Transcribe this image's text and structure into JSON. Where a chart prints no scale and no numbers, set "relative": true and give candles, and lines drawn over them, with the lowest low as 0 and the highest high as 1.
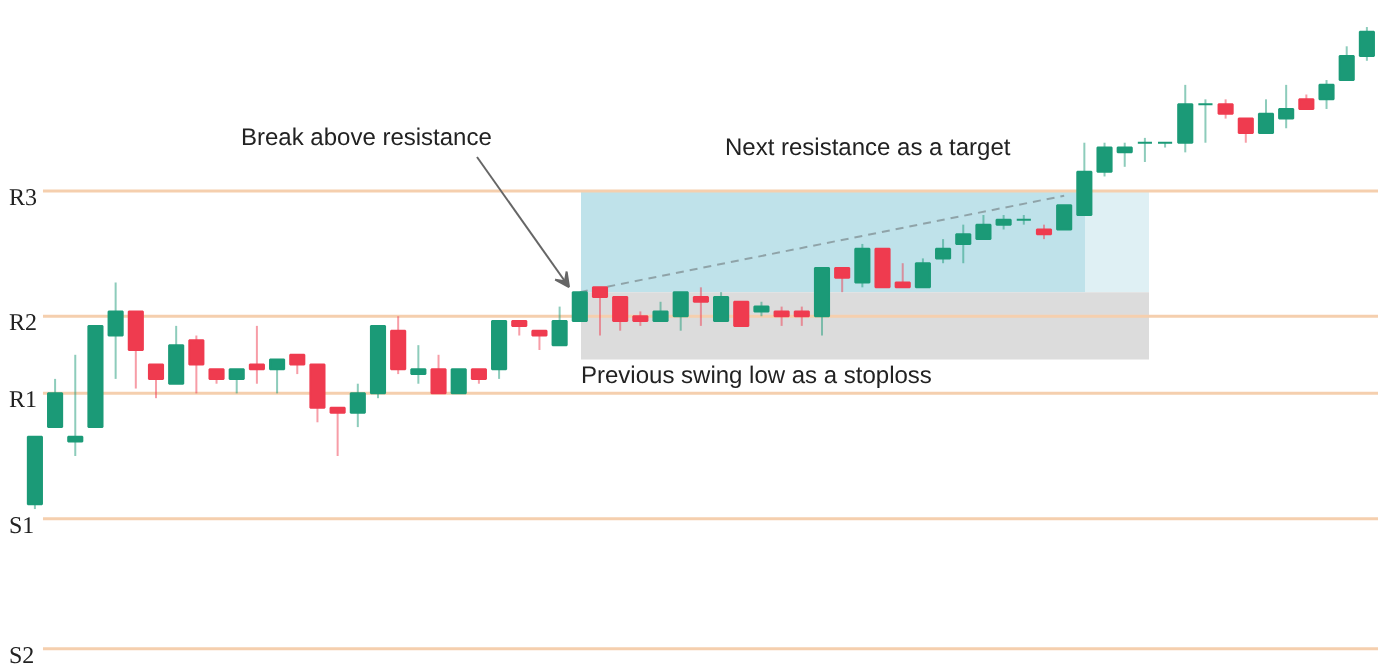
{
  "chart_data": {
    "type": "candlestick",
    "relative": true,
    "categories": [
      null,
      null,
      null,
      null,
      null,
      null,
      null,
      null,
      null,
      null,
      null,
      null,
      null,
      null,
      null,
      null,
      null,
      null,
      null,
      null,
      null,
      null,
      null,
      null,
      null,
      null,
      null,
      null,
      null,
      null,
      null,
      null,
      null,
      null,
      null,
      null,
      null,
      null,
      null,
      null,
      null,
      null,
      null,
      null,
      null,
      null,
      null,
      null,
      null,
      null,
      null,
      null,
      null,
      null,
      null,
      null,
      null,
      null,
      null,
      null,
      null,
      null,
      null,
      null,
      null,
      null,
      null
    ],
    "ohlc": [
      [
        0.01,
        0.15,
        0,
        0.15
      ],
      [
        0.17,
        0.27,
        0.17,
        0.24
      ],
      [
        0.14,
        0.32,
        0.11,
        0.15
      ],
      [
        0.17,
        0.38,
        0.17,
        0.38
      ],
      [
        0.36,
        0.47,
        0.27,
        0.41
      ],
      [
        0.41,
        0.41,
        0.25,
        0.33
      ],
      [
        0.3,
        0.3,
        0.23,
        0.27
      ],
      [
        0.26,
        0.38,
        0.26,
        0.34
      ],
      [
        0.35,
        0.36,
        0.24,
        0.3
      ],
      [
        0.29,
        0.29,
        0.26,
        0.27
      ],
      [
        0.27,
        0.29,
        0.24,
        0.29
      ],
      [
        0.3,
        0.38,
        0.26,
        0.29
      ],
      [
        0.29,
        0.31,
        0.24,
        0.31
      ],
      [
        0.32,
        0.32,
        0.28,
        0.3
      ],
      [
        0.3,
        0.3,
        0.18,
        0.21
      ],
      [
        0.21,
        0.21,
        0.11,
        0.2
      ],
      [
        0.2,
        0.26,
        0.17,
        0.24
      ],
      [
        0.24,
        0.38,
        0.23,
        0.38
      ],
      [
        0.37,
        0.4,
        0.28,
        0.29
      ],
      [
        0.28,
        0.34,
        0.26,
        0.29
      ],
      [
        0.29,
        0.32,
        0.24,
        0.24
      ],
      [
        0.24,
        0.29,
        0.24,
        0.29
      ],
      [
        0.29,
        0.29,
        0.26,
        0.27
      ],
      [
        0.29,
        0.39,
        0.27,
        0.39
      ],
      [
        0.39,
        0.39,
        0.36,
        0.38
      ],
      [
        0.37,
        0.37,
        0.33,
        0.36
      ],
      [
        0.34,
        0.42,
        0.34,
        0.39
      ],
      [
        0.39,
        0.45,
        0.39,
        0.45
      ],
      [
        0.46,
        0.46,
        0.36,
        0.44
      ],
      [
        0.44,
        0.44,
        0.37,
        0.39
      ],
      [
        0.4,
        0.41,
        0.38,
        0.39
      ],
      [
        0.39,
        0.43,
        0.39,
        0.41
      ],
      [
        0.4,
        0.45,
        0.37,
        0.45
      ],
      [
        0.44,
        0.46,
        0.38,
        0.43
      ],
      [
        0.39,
        0.45,
        0.39,
        0.44
      ],
      [
        0.43,
        0.43,
        0.38,
        0.38
      ],
      [
        0.41,
        0.43,
        0.4,
        0.42
      ],
      [
        0.41,
        0.42,
        0.38,
        0.4
      ],
      [
        0.41,
        0.42,
        0.38,
        0.4
      ],
      [
        0.4,
        0.5,
        0.36,
        0.5
      ],
      [
        0.5,
        0.5,
        0.45,
        0.48
      ],
      [
        0.47,
        0.55,
        0.46,
        0.54
      ],
      [
        0.54,
        0.54,
        0.46,
        0.46
      ],
      [
        0.47,
        0.51,
        0.46,
        0.46
      ],
      [
        0.46,
        0.52,
        0.46,
        0.51
      ],
      [
        0.52,
        0.56,
        0.51,
        0.54
      ],
      [
        0.55,
        0.59,
        0.51,
        0.57
      ],
      [
        0.56,
        0.61,
        0.56,
        0.59
      ],
      [
        0.59,
        0.61,
        0.58,
        0.6
      ],
      [
        0.6,
        0.61,
        0.59,
        0.6
      ],
      [
        0.58,
        0.59,
        0.56,
        0.57
      ],
      [
        0.58,
        0.63,
        0.58,
        0.63
      ],
      [
        0.61,
        0.76,
        0.61,
        0.7
      ],
      [
        0.7,
        0.76,
        0.69,
        0.75
      ],
      [
        0.74,
        0.76,
        0.71,
        0.75
      ],
      [
        0.76,
        0.77,
        0.72,
        0.76
      ],
      [
        0.76,
        0.76,
        0.75,
        0.76
      ],
      [
        0.76,
        0.88,
        0.74,
        0.84
      ],
      [
        0.84,
        0.85,
        0.76,
        0.84
      ],
      [
        0.84,
        0.85,
        0.81,
        0.82
      ],
      [
        0.81,
        0.81,
        0.76,
        0.78
      ],
      [
        0.78,
        0.85,
        0.78,
        0.82
      ],
      [
        0.81,
        0.88,
        0.79,
        0.83
      ],
      [
        0.85,
        0.86,
        0.83,
        0.83
      ],
      [
        0.85,
        0.89,
        0.83,
        0.88
      ],
      [
        0.89,
        0.96,
        0.89,
        0.94
      ],
      [
        0.94,
        1,
        0.93,
        0.99
      ]
    ],
    "colors": [
      "#1b9a77",
      "#1b9a77",
      "#1b9a77",
      "#1b9a77",
      "#1b9a77",
      "#ef3b4f",
      "#ef3b4f",
      "#1b9a77",
      "#ef3b4f",
      "#ef3b4f",
      "#1b9a77",
      "#ef3b4f",
      "#1b9a77",
      "#ef3b4f",
      "#ef3b4f",
      "#ef3b4f",
      "#1b9a77",
      "#1b9a77",
      "#ef3b4f",
      "#1b9a77",
      "#ef3b4f",
      "#1b9a77",
      "#ef3b4f",
      "#1b9a77",
      "#ef3b4f",
      "#ef3b4f",
      "#1b9a77",
      "#1b9a77",
      "#ef3b4f",
      "#ef3b4f",
      "#ef3b4f",
      "#1b9a77",
      "#1b9a77",
      "#ef3b4f",
      "#1b9a77",
      "#ef3b4f",
      "#1b9a77",
      "#ef3b4f",
      "#ef3b4f",
      "#1b9a77",
      "#ef3b4f",
      "#1b9a77",
      "#ef3b4f",
      "#ef3b4f",
      "#1b9a77",
      "#1b9a77",
      "#1b9a77",
      "#1b9a77",
      "#1b9a77",
      "#1b9a77",
      "#ef3b4f",
      "#1b9a77",
      "#1b9a77",
      "#1b9a77",
      "#1b9a77",
      "#1b9a77",
      "#1b9a77",
      "#1b9a77",
      "#1b9a77",
      "#ef3b4f",
      "#ef3b4f",
      "#1b9a77",
      "#1b9a77",
      "#ef3b4f",
      "#1b9a77",
      "#1b9a77",
      "#1b9a77"
    ],
    "series": [
      {
        "type": "line",
        "values": [
          null,
          null,
          null,
          null,
          null,
          null,
          null,
          null,
          null,
          null,
          null,
          null,
          null,
          null,
          null,
          null,
          null,
          null,
          null,
          null,
          null,
          null,
          null,
          null,
          null,
          null,
          null,
          0.45,
          null,
          null,
          null,
          null,
          null,
          null,
          null,
          null,
          null,
          null,
          null,
          null,
          null,
          null,
          null,
          null,
          null,
          null,
          null,
          null,
          null,
          null,
          null,
          0.65,
          null,
          null,
          null,
          null,
          null,
          null,
          null,
          null,
          null,
          null,
          null,
          null,
          null,
          null,
          null
        ],
        "color": "#8fa3a8",
        "line_style": "dashed"
      }
    ],
    "ref_lines": [
      {
        "axis": "y",
        "value": 0.66,
        "label": "R3",
        "color": "#f5cfae"
      },
      {
        "axis": "y",
        "value": 0.4,
        "label": "R2",
        "color": "#f5cfae"
      },
      {
        "axis": "y",
        "value": 0.24,
        "label": "R1",
        "color": "#f5cfae"
      },
      {
        "axis": "y",
        "value": -0.02,
        "label": "S1",
        "color": "#f5cfae"
      },
      {
        "axis": "y",
        "value": -0.29,
        "label": "S2",
        "color": "#f5cfae"
      }
    ],
    "bands": [
      {
        "axis": "y",
        "from": 0.45,
        "to": 0.66,
        "color": "#bfe2ea"
      },
      {
        "axis": "y",
        "from": 0.45,
        "to": 0.66,
        "color": "#dff0f4"
      },
      {
        "axis": "y",
        "from": 0.31,
        "to": 0.45,
        "color": "#dcdcdc"
      }
    ],
    "annotations": [
      "Break above resistance",
      "Next resistance as a target",
      "Previous swing low as a stoploss"
    ]
  }
}
